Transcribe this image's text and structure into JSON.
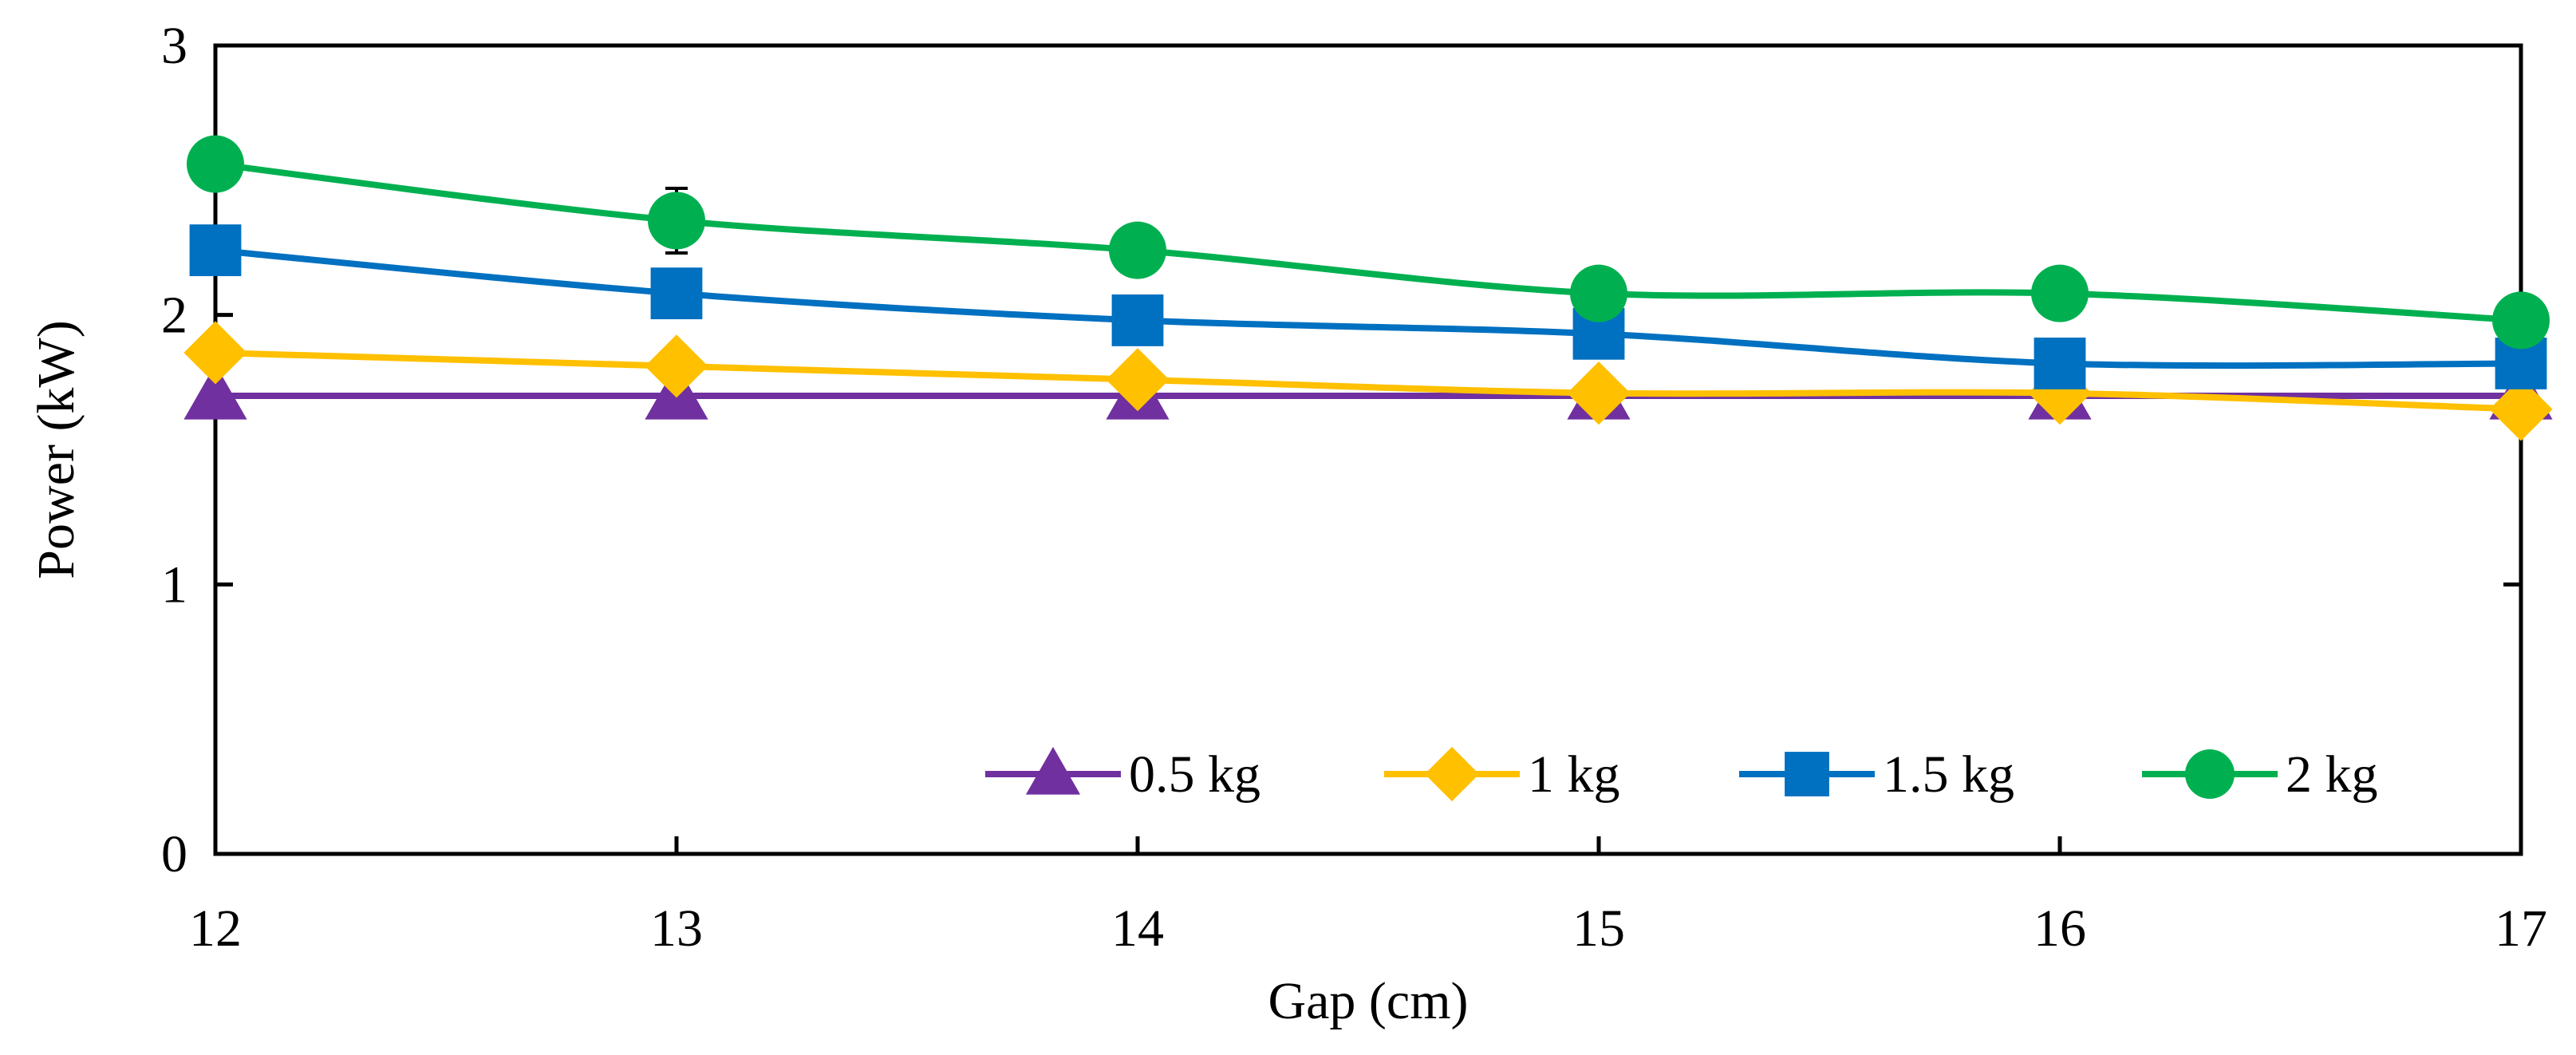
{
  "chart_data": {
    "type": "line",
    "title": "",
    "xlabel": "Gap (cm)",
    "ylabel": "Power (kW)",
    "x": [
      12,
      13,
      14,
      15,
      16,
      17
    ],
    "xlim": [
      12,
      17
    ],
    "ylim": [
      0,
      3
    ],
    "x_ticks": [
      "12",
      "13",
      "14",
      "15",
      "16",
      "17"
    ],
    "y_ticks": [
      "0",
      "1",
      "2",
      "3"
    ],
    "x_tick_values": [
      12,
      13,
      14,
      15,
      16,
      17
    ],
    "y_tick_values": [
      0,
      1,
      2,
      3
    ],
    "grid": false,
    "legend_position": "bottom-right inside",
    "series": [
      {
        "name": "0.5 kg",
        "color": "#7030A0",
        "marker": "triangle",
        "values": [
          1.7,
          1.7,
          1.7,
          1.7,
          1.7,
          1.7
        ]
      },
      {
        "name": "1 kg",
        "color": "#FFC000",
        "marker": "diamond",
        "values": [
          1.86,
          1.81,
          1.76,
          1.71,
          1.71,
          1.65
        ]
      },
      {
        "name": "1.5 kg",
        "color": "#0070C0",
        "marker": "square",
        "values": [
          2.24,
          2.08,
          1.98,
          1.93,
          1.82,
          1.82
        ]
      },
      {
        "name": "2 kg",
        "color": "#00B050",
        "marker": "circle",
        "values": [
          2.56,
          2.35,
          2.24,
          2.08,
          2.08,
          1.98
        ],
        "error_bars": [
          0,
          0.12,
          0,
          0,
          0,
          0
        ]
      }
    ]
  }
}
